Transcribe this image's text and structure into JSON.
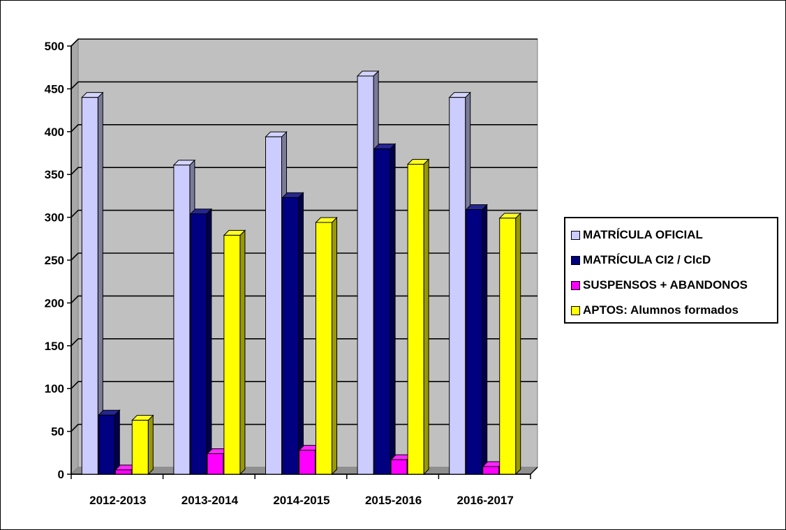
{
  "chart_data": {
    "type": "bar",
    "title": "",
    "xlabel": "",
    "ylabel": "",
    "ylim": [
      0,
      500
    ],
    "yticks": [
      0,
      50,
      100,
      150,
      200,
      250,
      300,
      350,
      400,
      450,
      500
    ],
    "grid": true,
    "style": "3d-clustered-column",
    "legend_position": "right",
    "categories": [
      "2012-2013",
      "2013-2014",
      "2014-2015",
      "2015-2016",
      "2016-2017"
    ],
    "series": [
      {
        "name": "MATRÍCULA OFICIAL",
        "color": "#ccccff",
        "values": [
          440,
          361,
          394,
          465,
          440
        ]
      },
      {
        "name": "MATRÍCULA CI2 / CIcD",
        "color": "#000080",
        "values": [
          69,
          304,
          323,
          380,
          309
        ]
      },
      {
        "name": "SUSPENSOS + ABANDONOS",
        "color": "#ff00ff",
        "values": [
          5,
          24,
          28,
          17,
          9
        ]
      },
      {
        "name": "APTOS: Alumnos formados",
        "color": "#ffff00",
        "values": [
          63,
          279,
          294,
          362,
          299
        ]
      }
    ],
    "plot_background": "#c0c0c0"
  }
}
